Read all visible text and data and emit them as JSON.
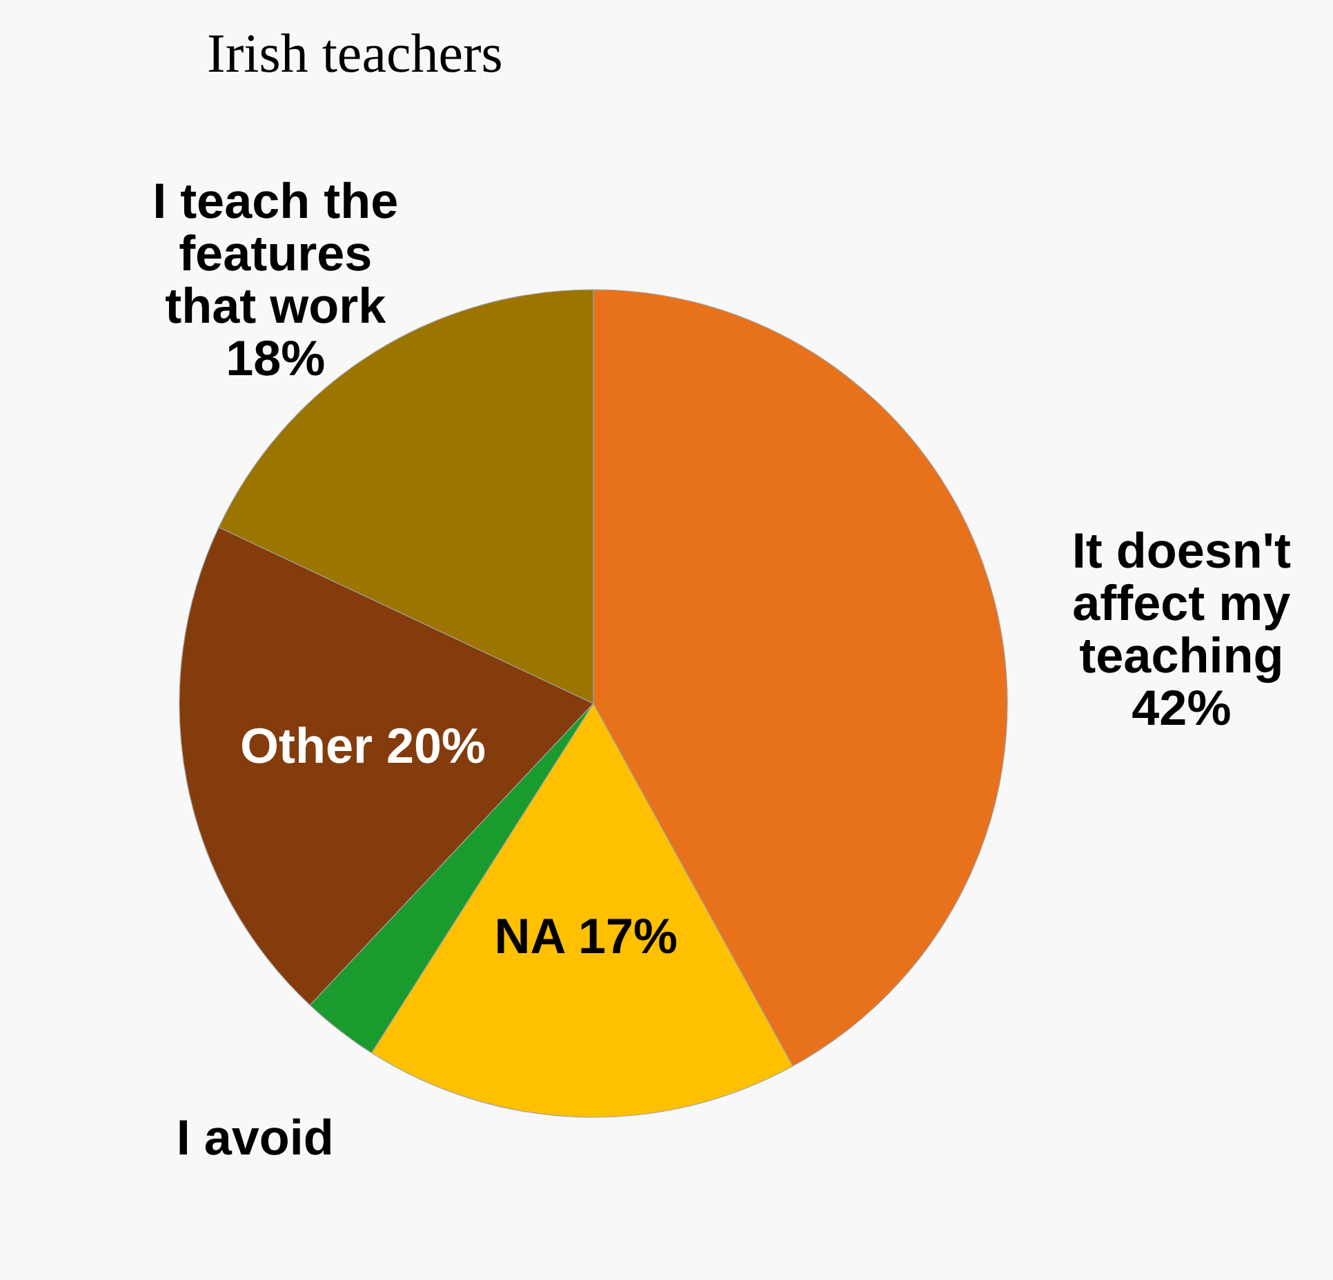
{
  "chart_data": {
    "type": "pie",
    "title": "Irish teachers",
    "categories": [
      "It doesn't\naffect my\nteaching",
      "NA",
      "I avoid",
      "Other",
      "I teach the\nfeatures\nthat work"
    ],
    "values": [
      42,
      17,
      3,
      20,
      18
    ],
    "value_labels": [
      "42%",
      "17%",
      null,
      "20%",
      "18%"
    ],
    "colors": [
      "#e8711c",
      "#ffc000",
      "#1a9b2e",
      "#843c0c",
      "#9c7400"
    ]
  }
}
